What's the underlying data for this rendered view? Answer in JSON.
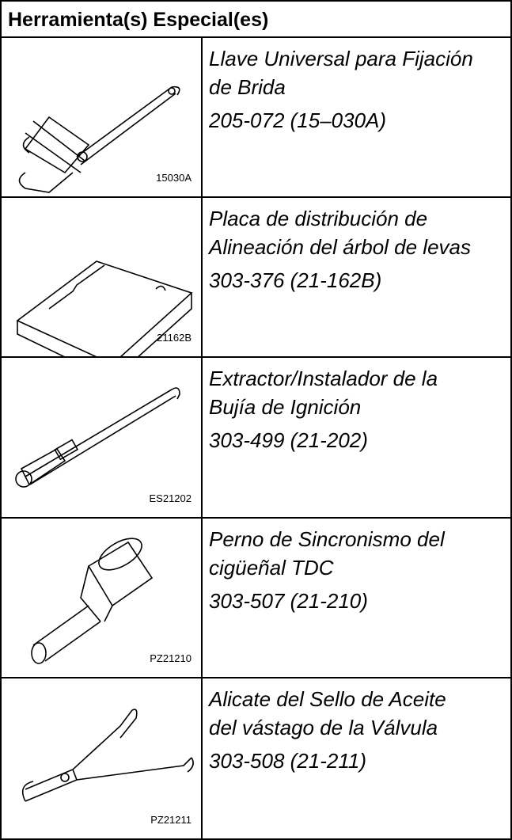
{
  "table": {
    "header": "Herramienta(s) Especial(es)",
    "rows": [
      {
        "code": "15030A",
        "description": [
          "Llave Universal para Fijación",
          "de Brida"
        ],
        "part_number": "205-072 (15–030A)"
      },
      {
        "code": "21162B",
        "description": [
          "Placa de distribución de",
          "Alineación del árbol de levas"
        ],
        "part_number": "303-376 (21-162B)"
      },
      {
        "code": "ES21202",
        "description": [
          "Extractor/Instalador de la",
          "Bujía de Ignición"
        ],
        "part_number": "303-499 (21-202)"
      },
      {
        "code": "PZ21210",
        "description": [
          "Perno de Sincronismo del",
          "cigüeñal TDC"
        ],
        "part_number": "303-507 (21-210)"
      },
      {
        "code": "PZ21211",
        "description": [
          "Alicate del Sello de Aceite",
          "del vástago de la Válvula"
        ],
        "part_number": "303-508 (21-211)"
      }
    ]
  }
}
